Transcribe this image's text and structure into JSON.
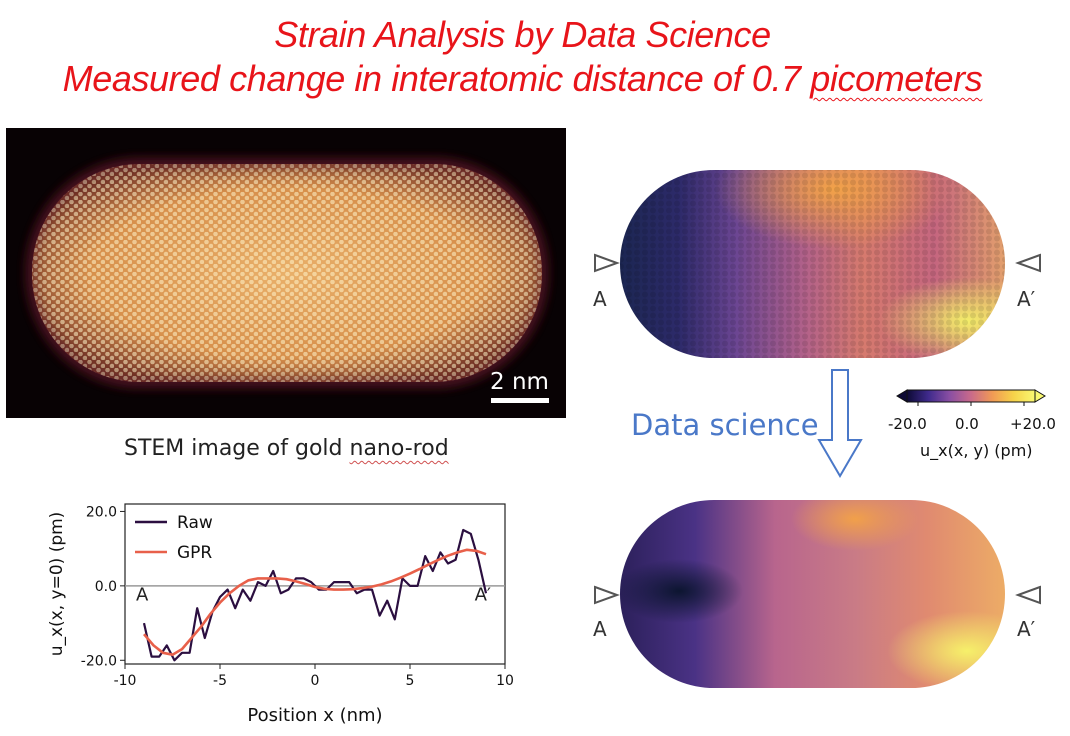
{
  "title": {
    "line1": "Strain Analysis by Data Science",
    "line2_prefix": "Measured change in interatomic distance of 0.7 ",
    "line2_unit": "picometers"
  },
  "stem": {
    "scale_bar": "2 nm",
    "caption_prefix": "STEM image of gold ",
    "caption_word": "nano-rod"
  },
  "maps": {
    "left_marker": "A",
    "right_marker": "A′",
    "arrow_label": "Data science"
  },
  "colorbar": {
    "ticks": [
      "-20.0",
      "0.0",
      "+20.0"
    ],
    "label": "u_x(x, y) (pm)",
    "colors": [
      "#0d0a35",
      "#3f2a8c",
      "#8a4fa3",
      "#c96a8a",
      "#f09a55",
      "#f6d34a",
      "#f9f871"
    ]
  },
  "chart_data": {
    "type": "line",
    "xlabel": "Position x (nm)",
    "ylabel": "u_x(x, y=0) (pm)",
    "xlim": [
      -10,
      10
    ],
    "ylim": [
      -21,
      22
    ],
    "x_ticks": [
      "-10",
      "-5",
      "0",
      "5",
      "10"
    ],
    "y_ticks": [
      "20.0",
      "0.0",
      "-20.0"
    ],
    "annotations": [
      "A",
      "A′"
    ],
    "legend_position": "top-left",
    "zero_line": true,
    "series": [
      {
        "name": "Raw",
        "color": "#2b0f40",
        "x": [
          -9.0,
          -8.6,
          -8.2,
          -7.8,
          -7.4,
          -7.0,
          -6.6,
          -6.2,
          -5.8,
          -5.4,
          -5.0,
          -4.6,
          -4.2,
          -3.8,
          -3.4,
          -3.0,
          -2.6,
          -2.2,
          -1.8,
          -1.4,
          -1.0,
          -0.6,
          -0.2,
          0.2,
          0.6,
          1.0,
          1.4,
          1.8,
          2.2,
          2.6,
          3.0,
          3.4,
          3.8,
          4.2,
          4.6,
          5.0,
          5.4,
          5.8,
          6.2,
          6.6,
          7.0,
          7.4,
          7.8,
          8.2,
          8.6,
          9.0
        ],
        "y": [
          -10,
          -19,
          -19,
          -16,
          -20,
          -18,
          -18,
          -6,
          -14,
          -7,
          -3,
          -1,
          -6,
          -1,
          -4,
          1,
          0,
          4,
          -2,
          -1,
          2,
          2,
          1,
          -1,
          -1,
          1,
          1,
          1,
          -2,
          -1,
          -1,
          -8,
          -4,
          -9,
          2,
          0,
          0,
          8,
          4,
          9,
          6,
          7,
          15,
          14,
          7,
          -2
        ]
      },
      {
        "name": "GPR",
        "color": "#e8604a",
        "x": [
          -9.0,
          -8.5,
          -8.0,
          -7.5,
          -7.0,
          -6.5,
          -6.0,
          -5.5,
          -5.0,
          -4.5,
          -4.0,
          -3.5,
          -3.0,
          -2.5,
          -2.0,
          -1.5,
          -1.0,
          -0.5,
          0.0,
          0.5,
          1.0,
          1.5,
          2.0,
          2.5,
          3.0,
          3.5,
          4.0,
          4.5,
          5.0,
          5.5,
          6.0,
          6.5,
          7.0,
          7.5,
          8.0,
          8.5,
          9.0
        ],
        "y": [
          -13,
          -16,
          -18,
          -18.5,
          -17,
          -14,
          -11,
          -7.5,
          -4.5,
          -2,
          0,
          1.5,
          2,
          2,
          2,
          1.8,
          1.2,
          0.5,
          -0.3,
          -0.8,
          -1.0,
          -1.0,
          -0.9,
          -0.6,
          -0.2,
          0.4,
          1.2,
          2.2,
          3.3,
          4.5,
          5.8,
          7.0,
          8.1,
          9.0,
          9.7,
          9.4,
          8.5
        ]
      }
    ]
  }
}
